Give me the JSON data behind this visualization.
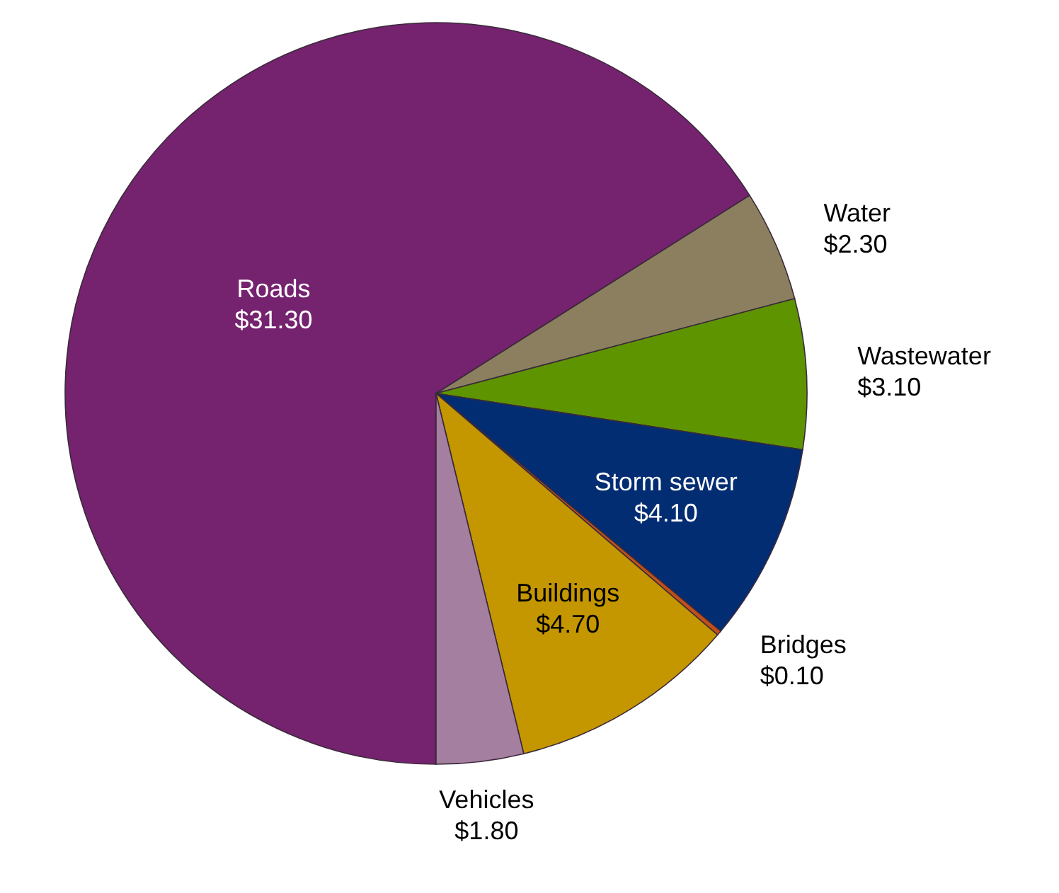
{
  "chart_data": {
    "type": "pie",
    "categories": [
      "Roads",
      "Water",
      "Wastewater",
      "Storm sewer",
      "Bridges",
      "Buildings",
      "Vehicles"
    ],
    "values": [
      31.3,
      2.3,
      3.1,
      4.1,
      0.1,
      4.7,
      1.8
    ],
    "colors": [
      "#75226f",
      "#8b7f5f",
      "#5e9400",
      "#032d73",
      "#c0501a",
      "#c49600",
      "#a57fa0"
    ],
    "value_labels": [
      "$31.30",
      "$2.30",
      "$3.10",
      "$4.10",
      "$0.10",
      "$4.70",
      "$1.80"
    ]
  }
}
